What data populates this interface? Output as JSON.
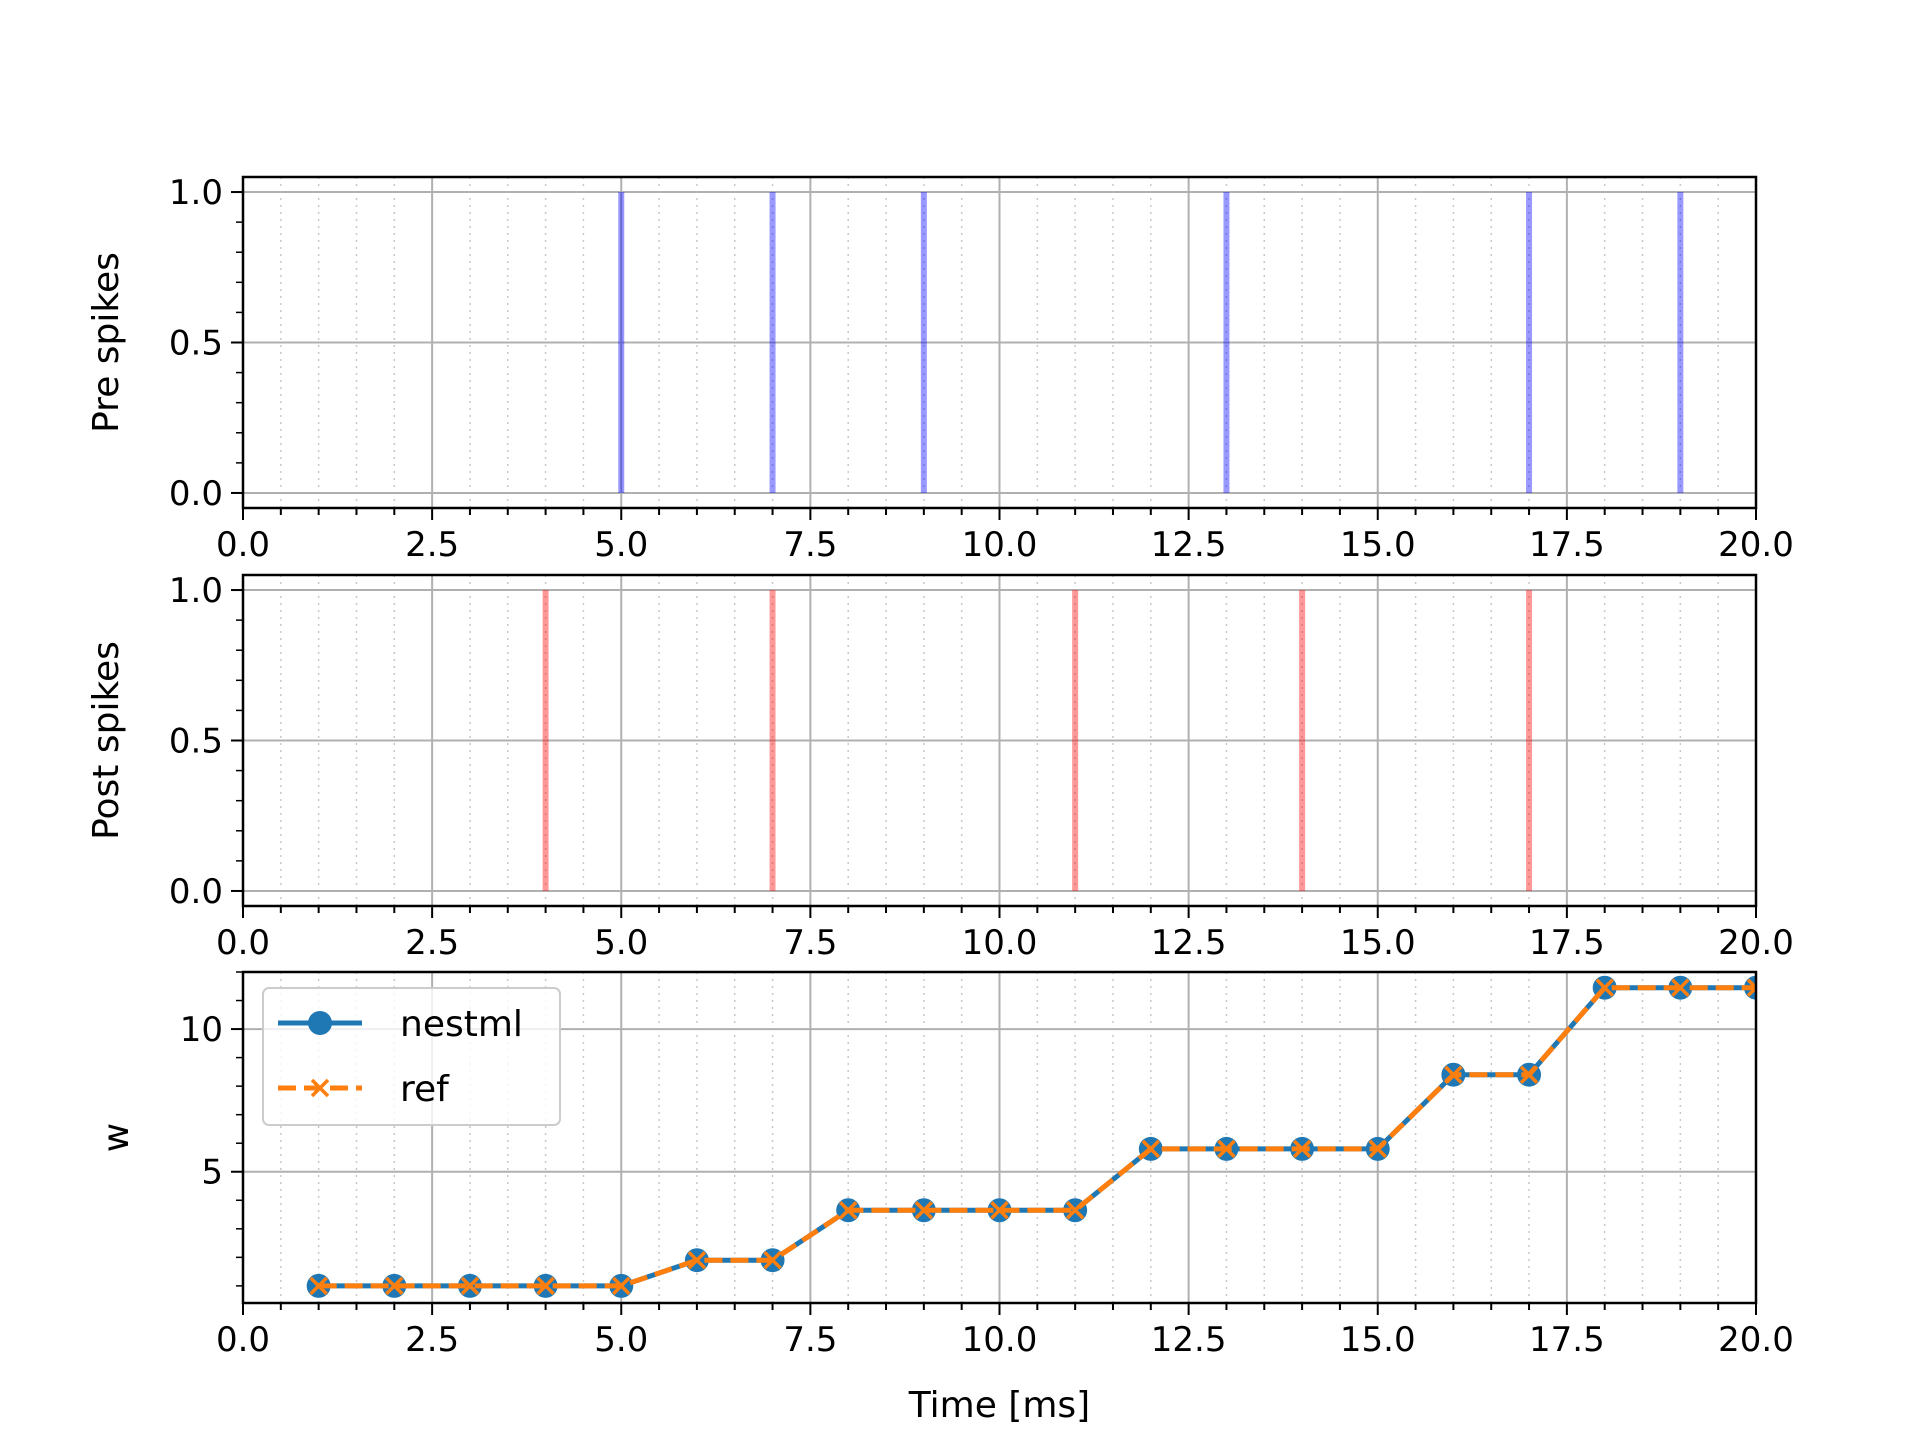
{
  "chart_data": [
    {
      "type": "bar",
      "ylabel": "Pre spikes",
      "xlim": [
        0,
        20
      ],
      "ylim": [
        -0.05,
        1.05
      ],
      "x_ticks": [
        "0.0",
        "2.5",
        "5.0",
        "7.5",
        "10.0",
        "12.5",
        "15.0",
        "17.5",
        "20.0"
      ],
      "y_ticks": [
        "0.0",
        "0.5",
        "1.0"
      ],
      "spike_times": [
        5,
        7,
        9,
        13,
        17,
        19
      ],
      "spike_height": 1.0,
      "color": "#0000ff",
      "grid": true
    },
    {
      "type": "bar",
      "ylabel": "Post spikes",
      "xlim": [
        0,
        20
      ],
      "ylim": [
        -0.05,
        1.05
      ],
      "x_ticks": [
        "0.0",
        "2.5",
        "5.0",
        "7.5",
        "10.0",
        "12.5",
        "15.0",
        "17.5",
        "20.0"
      ],
      "y_ticks": [
        "0.0",
        "0.5",
        "1.0"
      ],
      "spike_times": [
        4,
        7,
        11,
        14,
        17
      ],
      "spike_height": 1.0,
      "color": "#ff0000",
      "grid": true
    },
    {
      "type": "line",
      "xlabel": "Time [ms]",
      "ylabel": "w",
      "xlim": [
        0,
        20
      ],
      "ylim": [
        0.4,
        12.0
      ],
      "x_ticks": [
        "0.0",
        "2.5",
        "5.0",
        "7.5",
        "10.0",
        "12.5",
        "15.0",
        "17.5",
        "20.0"
      ],
      "y_ticks": [
        "5",
        "10"
      ],
      "x": [
        1,
        2,
        3,
        4,
        5,
        6,
        7,
        8,
        9,
        10,
        11,
        12,
        13,
        14,
        15,
        16,
        17,
        18,
        19,
        20
      ],
      "series": [
        {
          "name": "nestml",
          "values": [
            1.0,
            1.0,
            1.0,
            1.0,
            1.0,
            1.9,
            1.9,
            3.65,
            3.65,
            3.65,
            3.65,
            5.8,
            5.8,
            5.8,
            5.8,
            8.4,
            8.4,
            11.45,
            11.45,
            11.45
          ],
          "color": "#1f77b4",
          "marker": "circle",
          "line_style": "solid"
        },
        {
          "name": "ref",
          "values": [
            1.0,
            1.0,
            1.0,
            1.0,
            1.0,
            1.9,
            1.9,
            3.65,
            3.65,
            3.65,
            3.65,
            5.8,
            5.8,
            5.8,
            5.8,
            8.4,
            8.4,
            11.45,
            11.45,
            11.45
          ],
          "color": "#ff7f0e",
          "marker": "x",
          "line_style": "dashed"
        }
      ],
      "legend": "upper-left",
      "grid": true
    }
  ]
}
